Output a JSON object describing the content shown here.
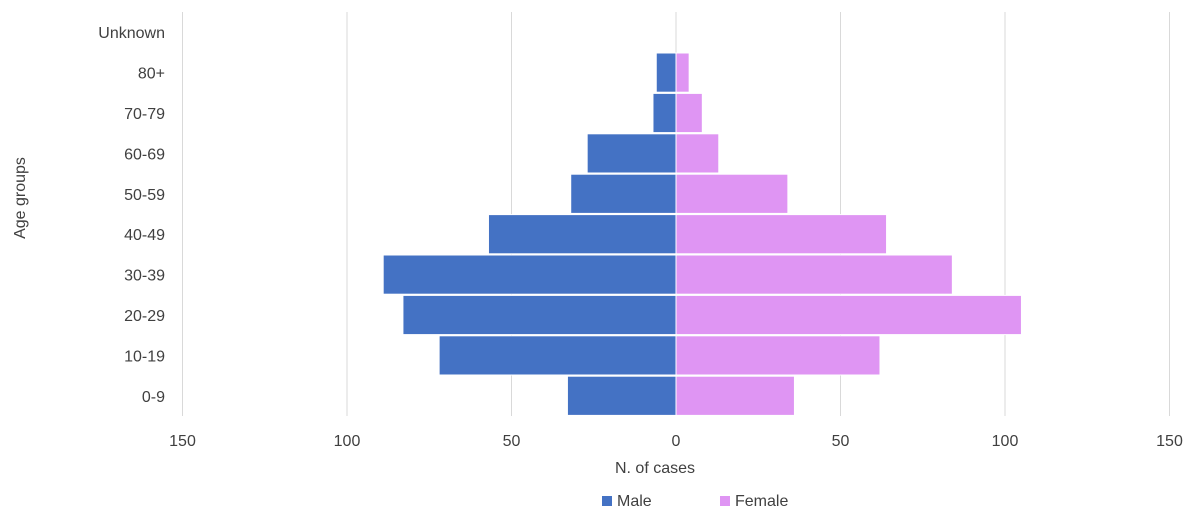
{
  "chart_data": {
    "type": "bar",
    "orientation": "horizontal-diverging",
    "categories": [
      "0-9",
      "10-19",
      "20-29",
      "30-39",
      "40-49",
      "50-59",
      "60-69",
      "70-79",
      "80+",
      "Unknown"
    ],
    "series": [
      {
        "name": "Male",
        "values": [
          33,
          72,
          83,
          89,
          57,
          32,
          27,
          7,
          6,
          0
        ],
        "color": "#4472c4",
        "side": "left"
      },
      {
        "name": "Female",
        "values": [
          36,
          62,
          105,
          84,
          64,
          34,
          13,
          8,
          4,
          0
        ],
        "color": "#df95f3",
        "side": "right"
      }
    ],
    "x_ticks": [
      -150,
      -100,
      -50,
      0,
      50,
      100,
      150
    ],
    "x_tick_labels": [
      "150",
      "100",
      "50",
      "0",
      "50",
      "100",
      "150"
    ],
    "xlim": [
      -150,
      150
    ],
    "xlabel": "N. of cases",
    "ylabel": "Age groups",
    "grid": true,
    "legend_position": "bottom"
  }
}
